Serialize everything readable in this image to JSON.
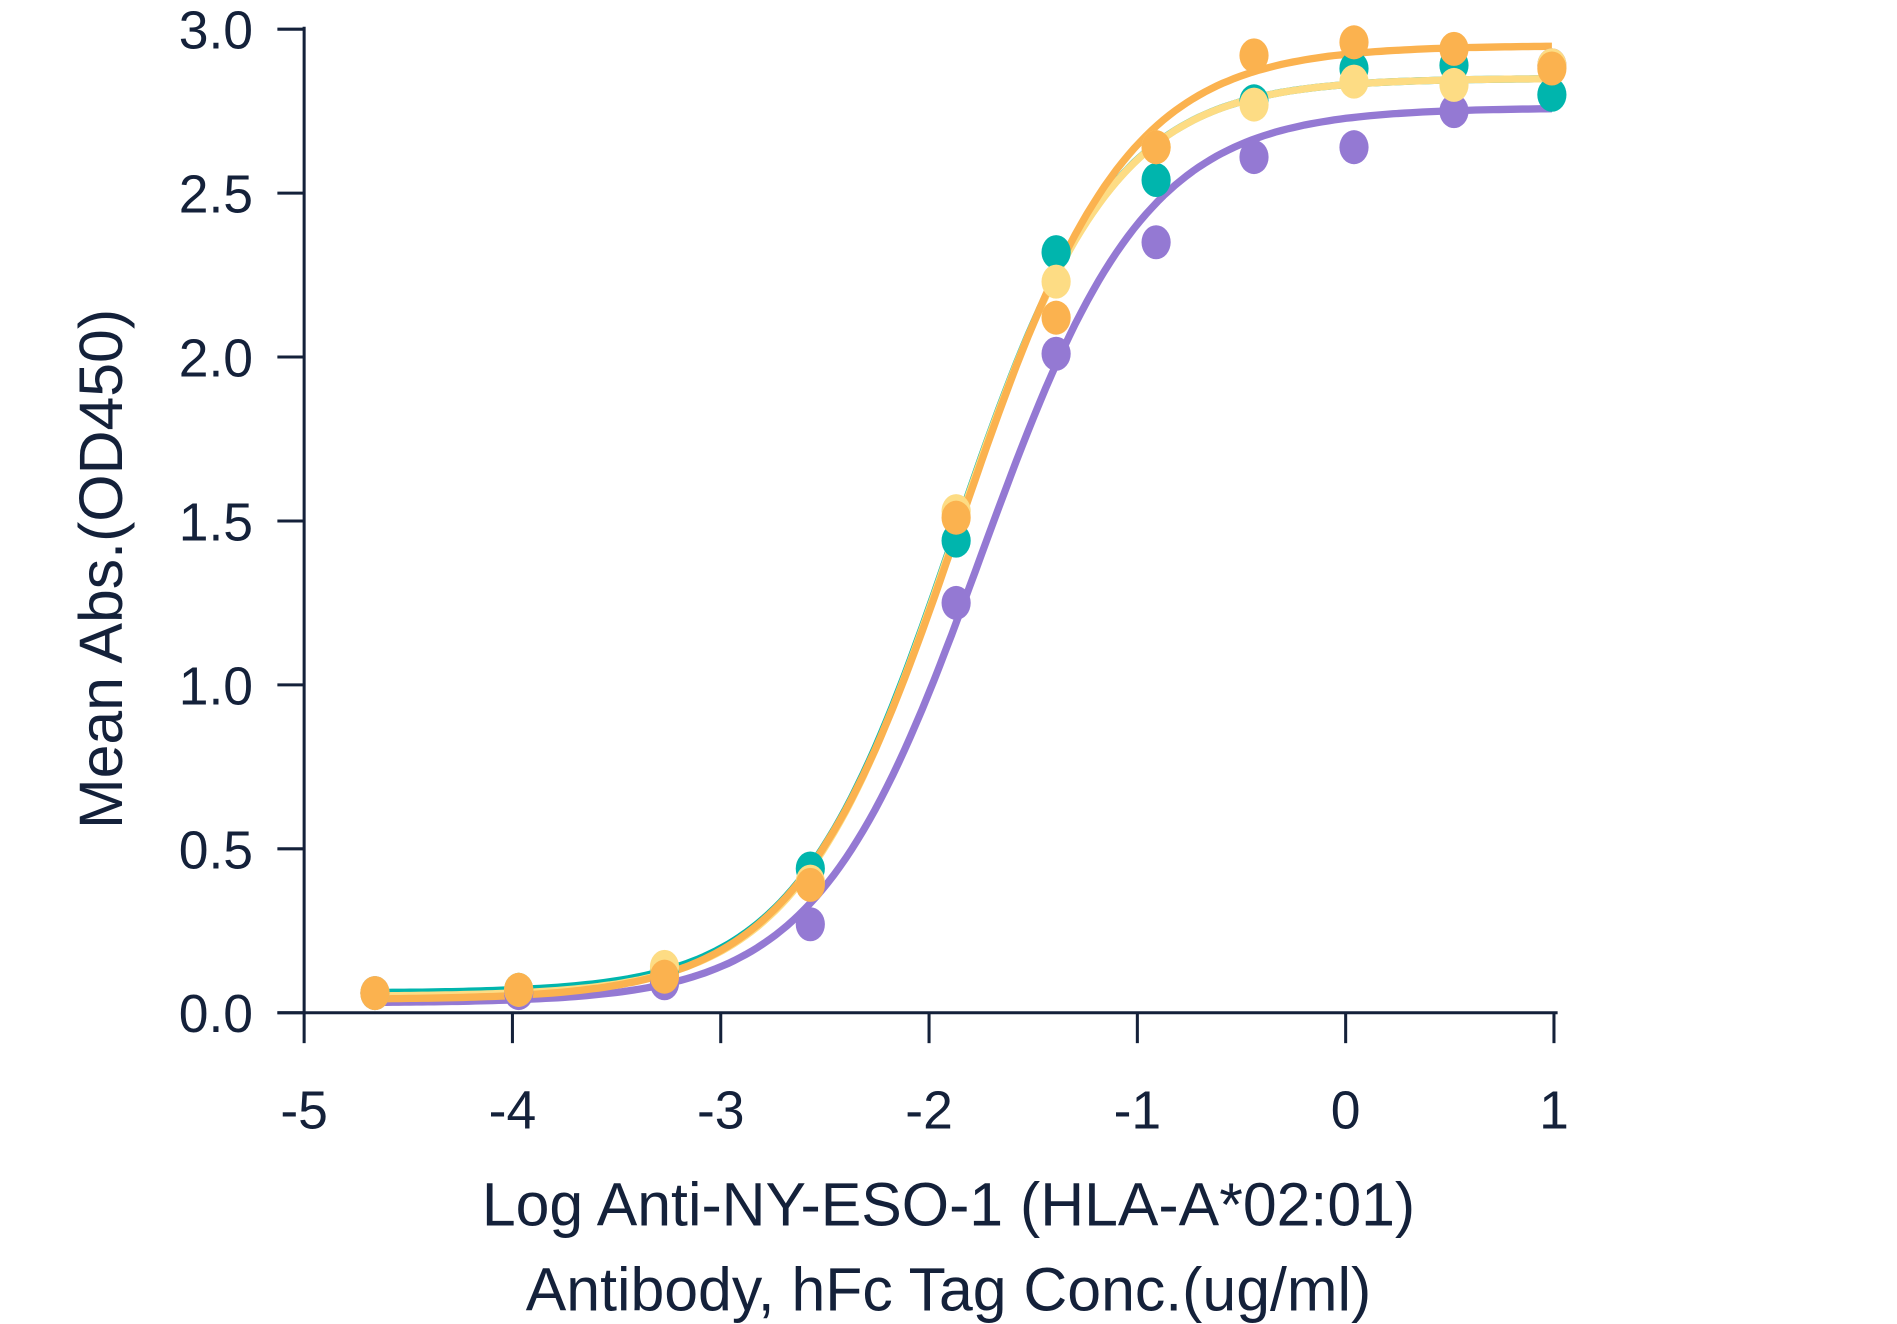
{
  "chart_data": {
    "type": "scatter",
    "title": "",
    "xlabel": [
      "Log Anti-NY-ESO-1 (HLA-A*02:01)",
      "Antibody, hFc Tag Conc.(ug/ml)"
    ],
    "ylabel": "Mean Abs.(OD450)",
    "xlim": [
      -5,
      1
    ],
    "ylim": [
      0,
      3.0
    ],
    "xticks": [
      -5,
      -4,
      -3,
      -2,
      -1,
      0,
      1
    ],
    "xtick_labels": [
      "-5",
      "-4",
      "-3",
      "-2",
      "-1",
      "0",
      "1"
    ],
    "yticks": [
      0,
      0.5,
      1.0,
      1.5,
      2.0,
      2.5,
      3.0
    ],
    "ytick_labels": [
      "0.0",
      "0.5",
      "1.0",
      "1.5",
      "2.0",
      "2.5",
      "3.0"
    ],
    "grid": false,
    "x": [
      -4.66,
      -3.97,
      -3.27,
      -2.57,
      -1.87,
      -1.39,
      -0.91,
      -0.44,
      0.04,
      0.52,
      0.99
    ],
    "series": [
      {
        "name": "series-teal",
        "color": "#00b5ad",
        "values": [
          0.06,
          0.07,
          0.13,
          0.44,
          1.44,
          2.32,
          2.54,
          2.78,
          2.88,
          2.89,
          2.8
        ],
        "fit": {
          "bottom": 0.06,
          "top": 2.85,
          "logEC50": -1.88,
          "hill": 1.15
        }
      },
      {
        "name": "series-purple",
        "color": "#9479d3",
        "values": [
          0.06,
          0.06,
          0.09,
          0.27,
          1.25,
          2.01,
          2.35,
          2.61,
          2.64,
          2.75,
          2.89
        ],
        "fit": {
          "bottom": 0.03,
          "top": 2.76,
          "logEC50": -1.75,
          "hill": 1.1
        }
      },
      {
        "name": "series-light-yellow",
        "color": "#fddc84",
        "values": [
          0.06,
          0.07,
          0.14,
          0.4,
          1.53,
          2.23,
          2.64,
          2.77,
          2.84,
          2.83,
          2.89
        ],
        "fit": {
          "bottom": 0.05,
          "top": 2.85,
          "logEC50": -1.88,
          "hill": 1.15
        }
      },
      {
        "name": "series-orange",
        "color": "#fbb24f",
        "values": [
          0.06,
          0.07,
          0.11,
          0.39,
          1.51,
          2.12,
          2.64,
          2.92,
          2.96,
          2.94,
          2.88
        ],
        "fit": {
          "bottom": 0.04,
          "top": 2.95,
          "logEC50": -1.85,
          "hill": 1.1
        }
      }
    ]
  }
}
